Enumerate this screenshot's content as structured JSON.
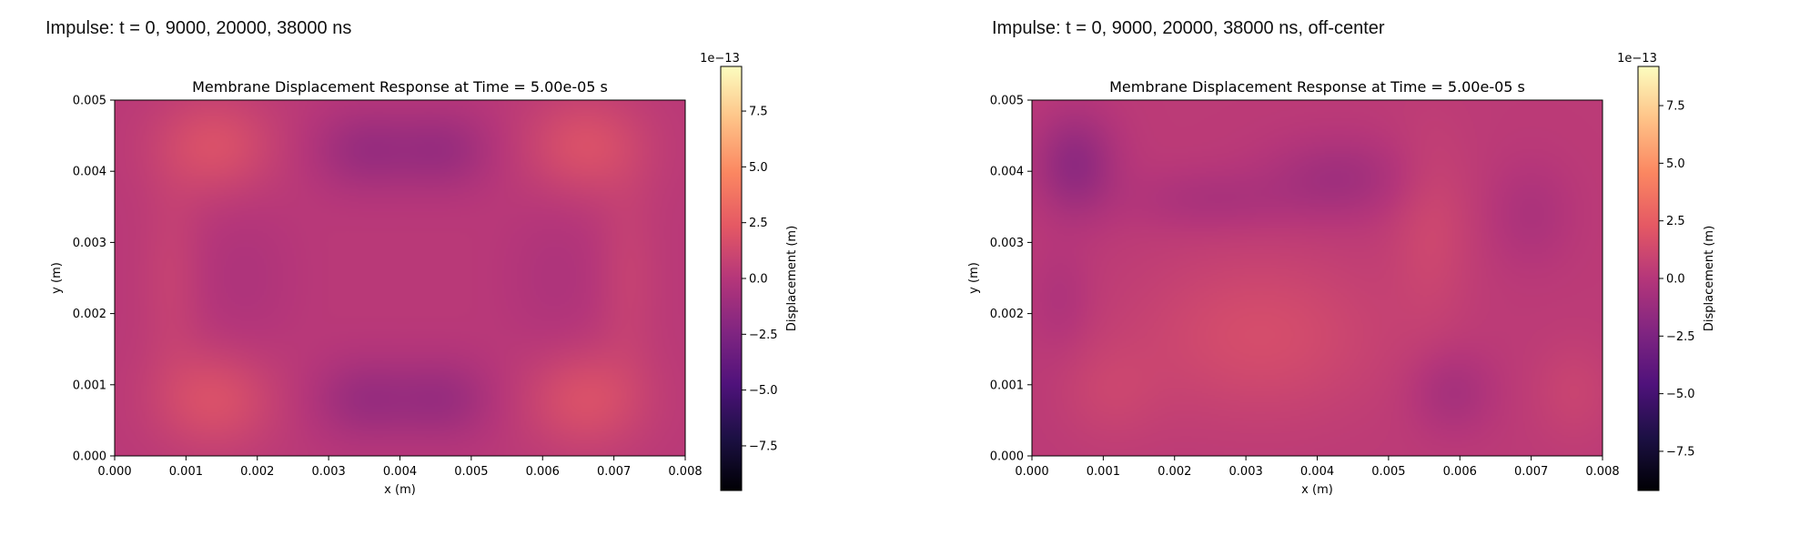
{
  "colors": {
    "background": "#ffffff",
    "colormap": [
      "#000004",
      "#1c1044",
      "#4f127b",
      "#812581",
      "#b5367a",
      "#e55964",
      "#fb8761",
      "#fec287",
      "#fcfdbf"
    ]
  },
  "panels": [
    {
      "heading": "Impulse: t = 0, 9000, 20000, 38000 ns",
      "chart_data": {
        "type": "heatmap",
        "title": "Membrane Displacement Response at Time = 5.00e-05 s",
        "xlabel": "x (m)",
        "ylabel": "y (m)",
        "xlim": [
          0,
          0.008
        ],
        "ylim": [
          0,
          0.005
        ],
        "xticks": [
          "0.000",
          "0.001",
          "0.002",
          "0.003",
          "0.004",
          "0.005",
          "0.006",
          "0.007",
          "0.008"
        ],
        "yticks": [
          "0.000",
          "0.001",
          "0.002",
          "0.003",
          "0.004",
          "0.005"
        ],
        "z_baseline": 2e-14,
        "features": [
          {
            "x": 0.0014,
            "y": 0.00435,
            "amp": 1.6e-13,
            "sx": 0.0006,
            "sy": 0.0005
          },
          {
            "x": 0.0066,
            "y": 0.00435,
            "amp": 1.6e-13,
            "sx": 0.0006,
            "sy": 0.0005
          },
          {
            "x": 0.0014,
            "y": 0.0008,
            "amp": 1.6e-13,
            "sx": 0.0006,
            "sy": 0.0005
          },
          {
            "x": 0.0066,
            "y": 0.0008,
            "amp": 1.6e-13,
            "sx": 0.0006,
            "sy": 0.0005
          },
          {
            "x": 0.0035,
            "y": 0.0043,
            "amp": -1.4e-13,
            "sx": 0.0005,
            "sy": 0.0004
          },
          {
            "x": 0.0046,
            "y": 0.0043,
            "amp": -1.4e-13,
            "sx": 0.0005,
            "sy": 0.0004
          },
          {
            "x": 0.0035,
            "y": 0.0008,
            "amp": -1.4e-13,
            "sx": 0.0005,
            "sy": 0.0004
          },
          {
            "x": 0.0046,
            "y": 0.0008,
            "amp": -1.4e-13,
            "sx": 0.0005,
            "sy": 0.0004
          },
          {
            "x": 0.0018,
            "y": 0.0025,
            "amp": -5e-14,
            "sx": 0.0005,
            "sy": 0.0008
          },
          {
            "x": 0.0062,
            "y": 0.0025,
            "amp": -5e-14,
            "sx": 0.0005,
            "sy": 0.0008
          },
          {
            "x": 0.0008,
            "y": 0.0025,
            "amp": 6e-14,
            "sx": 0.0003,
            "sy": 0.0009
          },
          {
            "x": 0.0072,
            "y": 0.0025,
            "amp": 6e-14,
            "sx": 0.0003,
            "sy": 0.0009
          }
        ],
        "colorbar": {
          "label": "Displacement (m)",
          "exponent": "1e−13",
          "zlim": [
            -9.5e-13,
            9.5e-13
          ],
          "ticks": [
            7.5,
            5.0,
            2.5,
            0.0,
            -2.5,
            -5.0,
            -7.5
          ],
          "tick_labels": [
            "7.5",
            "5.0",
            "2.5",
            "0.0",
            "−2.5",
            "−5.0",
            "−7.5"
          ]
        }
      }
    },
    {
      "heading": "Impulse: t = 0, 9000, 20000, 38000 ns, off-center",
      "chart_data": {
        "type": "heatmap",
        "title": "Membrane Displacement Response at Time = 5.00e-05 s",
        "xlabel": "x (m)",
        "ylabel": "y (m)",
        "xlim": [
          0,
          0.008
        ],
        "ylim": [
          0,
          0.005
        ],
        "xticks": [
          "0.000",
          "0.001",
          "0.002",
          "0.003",
          "0.004",
          "0.005",
          "0.006",
          "0.007",
          "0.008"
        ],
        "yticks": [
          "0.000",
          "0.001",
          "0.002",
          "0.003",
          "0.004",
          "0.005"
        ],
        "z_baseline": 3e-14,
        "features": [
          {
            "x": 0.0006,
            "y": 0.0041,
            "amp": -2e-13,
            "sx": 0.0004,
            "sy": 0.0005
          },
          {
            "x": 0.0043,
            "y": 0.0039,
            "amp": -1.2e-13,
            "sx": 0.0007,
            "sy": 0.0004
          },
          {
            "x": 0.0025,
            "y": 0.0036,
            "amp": -8e-14,
            "sx": 0.0008,
            "sy": 0.0003
          },
          {
            "x": 0.0032,
            "y": 0.0017,
            "amp": 1.2e-13,
            "sx": 0.0012,
            "sy": 0.0008
          },
          {
            "x": 0.0056,
            "y": 0.0032,
            "amp": 8e-14,
            "sx": 0.0004,
            "sy": 0.0009
          },
          {
            "x": 0.0059,
            "y": 0.0009,
            "amp": -1e-13,
            "sx": 0.0004,
            "sy": 0.0004
          },
          {
            "x": 0.007,
            "y": 0.0034,
            "amp": -7e-14,
            "sx": 0.0004,
            "sy": 0.0005
          },
          {
            "x": 0.0011,
            "y": 0.0009,
            "amp": 6e-14,
            "sx": 0.0005,
            "sy": 0.0005
          },
          {
            "x": 0.0076,
            "y": 0.0009,
            "amp": 6e-14,
            "sx": 0.0004,
            "sy": 0.0005
          },
          {
            "x": 0.0004,
            "y": 0.0022,
            "amp": -6e-14,
            "sx": 0.0003,
            "sy": 0.0005
          }
        ],
        "colorbar": {
          "label": "Displacement (m)",
          "exponent": "1e−13",
          "zlim": [
            -9.2e-13,
            9.2e-13
          ],
          "ticks": [
            7.5,
            5.0,
            2.5,
            0.0,
            -2.5,
            -5.0,
            -7.5
          ],
          "tick_labels": [
            "7.5",
            "5.0",
            "2.5",
            "0.0",
            "−2.5",
            "−5.0",
            "−7.5"
          ]
        }
      }
    }
  ]
}
